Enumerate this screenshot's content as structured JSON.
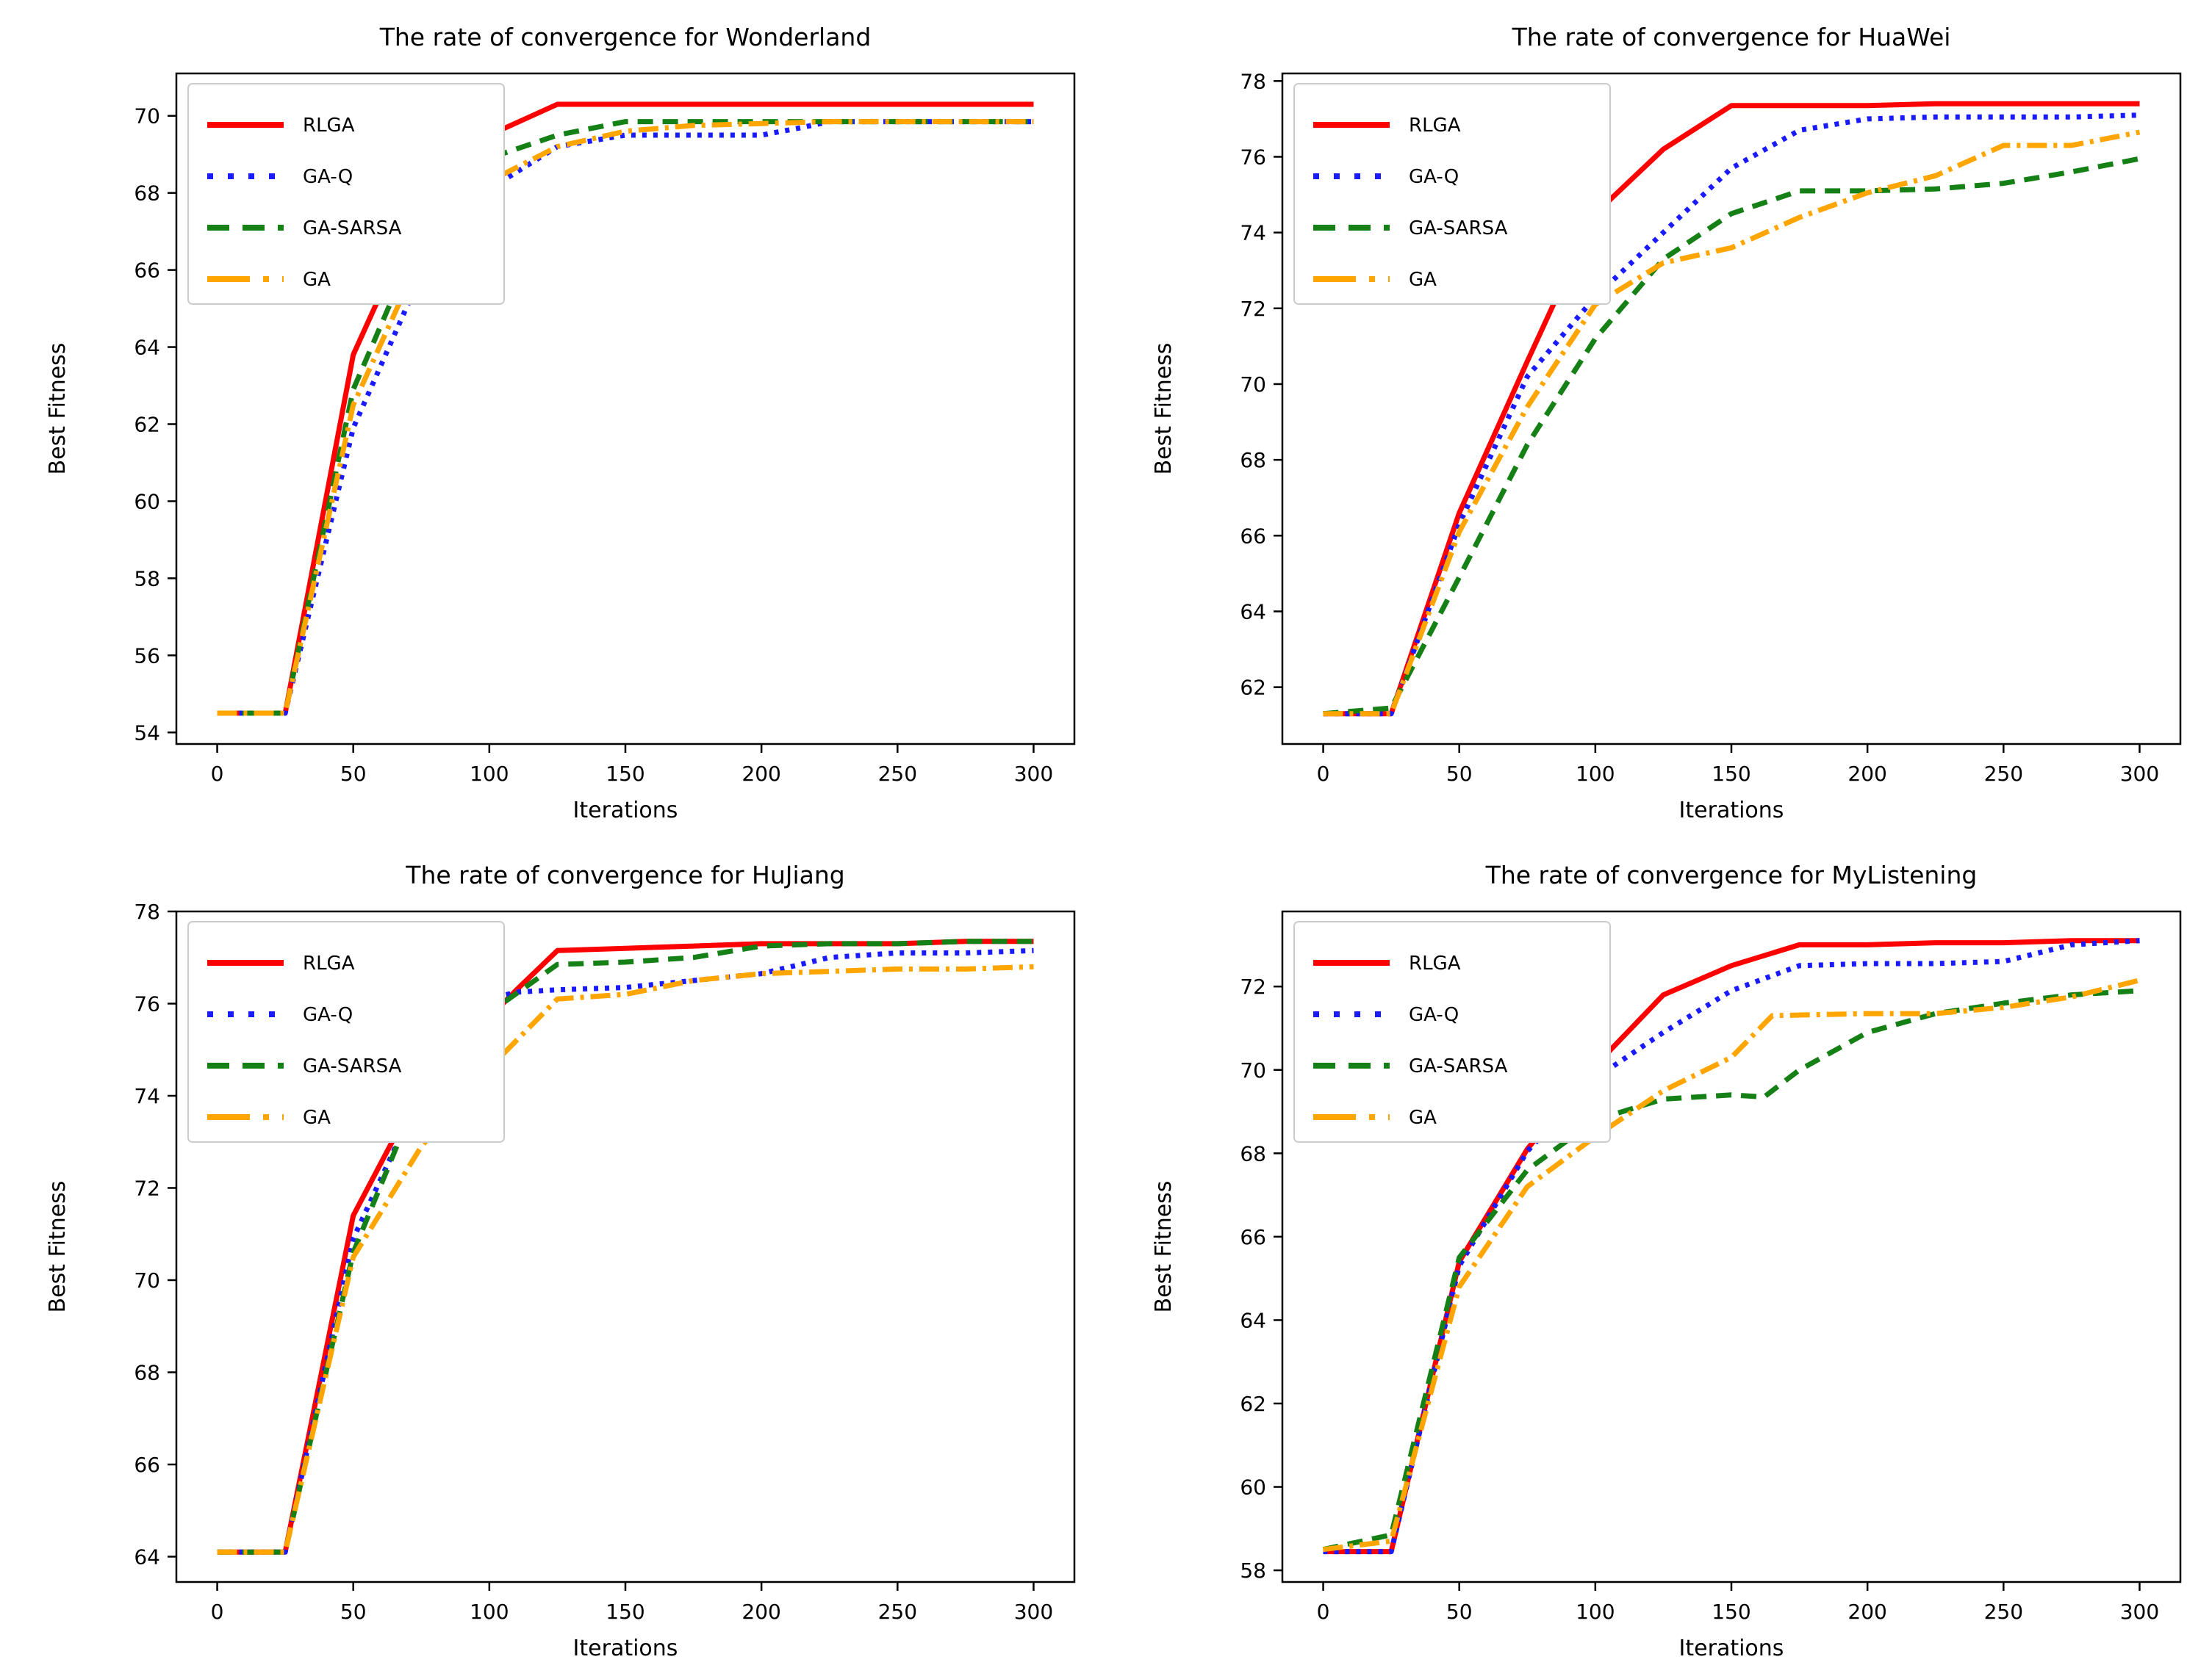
{
  "figure": {
    "background": "#ffffff",
    "text_color": "#000000",
    "axis_color": "#000000",
    "legend_border_color": "#cccccc"
  },
  "chart_data": [
    {
      "type": "line",
      "title": "The rate of convergence for Wonderland",
      "xlabel": "Iterations",
      "ylabel": "Best Fitness",
      "xlim": [
        -15,
        315
      ],
      "ylim": [
        53.7,
        71.1
      ],
      "xticks": [
        0,
        50,
        100,
        150,
        200,
        250,
        300
      ],
      "yticks": [
        54,
        56,
        58,
        60,
        62,
        64,
        66,
        68,
        70
      ],
      "grid": false,
      "legend_position": "upper-left",
      "series": [
        {
          "name": "RLGA",
          "color": "#ff0000",
          "style": "solid",
          "points": [
            [
              0,
              54.5
            ],
            [
              25,
              54.5
            ],
            [
              50,
              63.8
            ],
            [
              75,
              67.7
            ],
            [
              100,
              69.5
            ],
            [
              125,
              70.3
            ],
            [
              150,
              70.3
            ],
            [
              175,
              70.3
            ],
            [
              200,
              70.3
            ],
            [
              225,
              70.3
            ],
            [
              250,
              70.3
            ],
            [
              275,
              70.3
            ],
            [
              300,
              70.3
            ]
          ]
        },
        {
          "name": "GA-Q",
          "color": "#1a1aff",
          "style": "dotted",
          "points": [
            [
              0,
              54.5
            ],
            [
              25,
              54.5
            ],
            [
              50,
              61.9
            ],
            [
              75,
              65.9
            ],
            [
              100,
              68.1
            ],
            [
              125,
              69.2
            ],
            [
              150,
              69.5
            ],
            [
              175,
              69.5
            ],
            [
              200,
              69.5
            ],
            [
              215,
              69.7
            ],
            [
              225,
              69.85
            ],
            [
              250,
              69.85
            ],
            [
              275,
              69.85
            ],
            [
              300,
              69.85
            ]
          ]
        },
        {
          "name": "GA-SARSA",
          "color": "#158015",
          "style": "dashed",
          "points": [
            [
              0,
              54.5
            ],
            [
              25,
              54.5
            ],
            [
              50,
              62.9
            ],
            [
              75,
              67.0
            ],
            [
              100,
              68.9
            ],
            [
              125,
              69.5
            ],
            [
              150,
              69.85
            ],
            [
              175,
              69.85
            ],
            [
              200,
              69.85
            ],
            [
              225,
              69.85
            ],
            [
              250,
              69.85
            ],
            [
              275,
              69.85
            ],
            [
              300,
              69.85
            ]
          ]
        },
        {
          "name": "GA",
          "color": "#ffa500",
          "style": "dashdot",
          "points": [
            [
              0,
              54.5
            ],
            [
              25,
              54.5
            ],
            [
              50,
              62.5
            ],
            [
              75,
              66.4
            ],
            [
              100,
              68.3
            ],
            [
              125,
              69.2
            ],
            [
              150,
              69.6
            ],
            [
              175,
              69.75
            ],
            [
              200,
              69.8
            ],
            [
              225,
              69.85
            ],
            [
              250,
              69.85
            ],
            [
              275,
              69.85
            ],
            [
              300,
              69.85
            ]
          ]
        }
      ]
    },
    {
      "type": "line",
      "title": "The rate of convergence for HuaWei",
      "xlabel": "Iterations",
      "ylabel": "Best Fitness",
      "xlim": [
        -15,
        315
      ],
      "ylim": [
        60.5,
        78.2
      ],
      "xticks": [
        0,
        50,
        100,
        150,
        200,
        250,
        300
      ],
      "yticks": [
        62,
        64,
        66,
        68,
        70,
        72,
        74,
        76,
        78
      ],
      "grid": false,
      "legend_position": "upper-left",
      "series": [
        {
          "name": "RLGA",
          "color": "#ff0000",
          "style": "solid",
          "points": [
            [
              0,
              61.3
            ],
            [
              25,
              61.3
            ],
            [
              50,
              66.6
            ],
            [
              75,
              70.6
            ],
            [
              100,
              74.5
            ],
            [
              125,
              76.2
            ],
            [
              150,
              77.35
            ],
            [
              175,
              77.35
            ],
            [
              200,
              77.35
            ],
            [
              225,
              77.4
            ],
            [
              250,
              77.4
            ],
            [
              275,
              77.4
            ],
            [
              300,
              77.4
            ]
          ]
        },
        {
          "name": "GA-Q",
          "color": "#1a1aff",
          "style": "dotted",
          "points": [
            [
              0,
              61.3
            ],
            [
              25,
              61.3
            ],
            [
              50,
              66.3
            ],
            [
              75,
              70.2
            ],
            [
              100,
              72.3
            ],
            [
              125,
              74.0
            ],
            [
              150,
              75.7
            ],
            [
              175,
              76.7
            ],
            [
              200,
              77.0
            ],
            [
              225,
              77.05
            ],
            [
              250,
              77.05
            ],
            [
              275,
              77.05
            ],
            [
              300,
              77.1
            ]
          ]
        },
        {
          "name": "GA-SARSA",
          "color": "#158015",
          "style": "dashed",
          "points": [
            [
              0,
              61.3
            ],
            [
              25,
              61.45
            ],
            [
              50,
              64.9
            ],
            [
              75,
              68.4
            ],
            [
              100,
              71.2
            ],
            [
              125,
              73.3
            ],
            [
              150,
              74.5
            ],
            [
              175,
              75.1
            ],
            [
              200,
              75.1
            ],
            [
              225,
              75.15
            ],
            [
              250,
              75.3
            ],
            [
              275,
              75.6
            ],
            [
              300,
              75.95
            ]
          ]
        },
        {
          "name": "GA",
          "color": "#ffa500",
          "style": "dashdot",
          "points": [
            [
              0,
              61.3
            ],
            [
              25,
              61.3
            ],
            [
              50,
              66.1
            ],
            [
              75,
              69.4
            ],
            [
              100,
              72.1
            ],
            [
              125,
              73.2
            ],
            [
              150,
              73.6
            ],
            [
              175,
              74.4
            ],
            [
              200,
              75.05
            ],
            [
              225,
              75.5
            ],
            [
              250,
              76.3
            ],
            [
              275,
              76.3
            ],
            [
              300,
              76.65
            ]
          ]
        }
      ]
    },
    {
      "type": "line",
      "title": "The rate of convergence for HuJiang",
      "xlabel": "Iterations",
      "ylabel": "Best Fitness",
      "xlim": [
        -15,
        315
      ],
      "ylim": [
        63.45,
        78.0
      ],
      "xticks": [
        0,
        50,
        100,
        150,
        200,
        250,
        300
      ],
      "yticks": [
        64,
        66,
        68,
        70,
        72,
        74,
        76,
        78
      ],
      "grid": false,
      "legend_position": "upper-left",
      "series": [
        {
          "name": "RLGA",
          "color": "#ff0000",
          "style": "solid",
          "points": [
            [
              0,
              64.1
            ],
            [
              25,
              64.1
            ],
            [
              50,
              71.4
            ],
            [
              75,
              74.2
            ],
            [
              100,
              75.7
            ],
            [
              110,
              76.3
            ],
            [
              125,
              77.15
            ],
            [
              150,
              77.2
            ],
            [
              175,
              77.25
            ],
            [
              200,
              77.3
            ],
            [
              225,
              77.3
            ],
            [
              250,
              77.3
            ],
            [
              275,
              77.35
            ],
            [
              300,
              77.35
            ]
          ]
        },
        {
          "name": "GA-Q",
          "color": "#1a1aff",
          "style": "dotted",
          "points": [
            [
              0,
              64.1
            ],
            [
              25,
              64.1
            ],
            [
              50,
              70.9
            ],
            [
              75,
              74.1
            ],
            [
              90,
              75.4
            ],
            [
              100,
              76.1
            ],
            [
              110,
              76.25
            ],
            [
              125,
              76.3
            ],
            [
              150,
              76.35
            ],
            [
              175,
              76.5
            ],
            [
              200,
              76.65
            ],
            [
              225,
              77.0
            ],
            [
              250,
              77.1
            ],
            [
              275,
              77.1
            ],
            [
              300,
              77.15
            ]
          ]
        },
        {
          "name": "GA-SARSA",
          "color": "#158015",
          "style": "dashed",
          "points": [
            [
              0,
              64.1
            ],
            [
              25,
              64.1
            ],
            [
              50,
              70.6
            ],
            [
              75,
              74.2
            ],
            [
              100,
              75.8
            ],
            [
              125,
              76.85
            ],
            [
              150,
              76.9
            ],
            [
              175,
              77.0
            ],
            [
              200,
              77.25
            ],
            [
              225,
              77.3
            ],
            [
              250,
              77.3
            ],
            [
              275,
              77.35
            ],
            [
              300,
              77.35
            ]
          ]
        },
        {
          "name": "GA",
          "color": "#ffa500",
          "style": "dashdot",
          "points": [
            [
              0,
              64.1
            ],
            [
              25,
              64.1
            ],
            [
              50,
              70.5
            ],
            [
              75,
              72.9
            ],
            [
              100,
              74.6
            ],
            [
              125,
              76.1
            ],
            [
              150,
              76.2
            ],
            [
              175,
              76.5
            ],
            [
              200,
              76.65
            ],
            [
              225,
              76.7
            ],
            [
              250,
              76.75
            ],
            [
              275,
              76.75
            ],
            [
              300,
              76.8
            ]
          ]
        }
      ]
    },
    {
      "type": "line",
      "title": "The rate of convergence for MyListening",
      "xlabel": "Iterations",
      "ylabel": "Best Fitness",
      "xlim": [
        -15,
        315
      ],
      "ylim": [
        57.72,
        73.8
      ],
      "xticks": [
        0,
        50,
        100,
        150,
        200,
        250,
        300
      ],
      "yticks": [
        58,
        60,
        62,
        64,
        66,
        68,
        70,
        72
      ],
      "grid": false,
      "legend_position": "upper-left",
      "series": [
        {
          "name": "RLGA",
          "color": "#ff0000",
          "style": "solid",
          "points": [
            [
              0,
              58.45
            ],
            [
              25,
              58.45
            ],
            [
              50,
              65.4
            ],
            [
              75,
              68.1
            ],
            [
              100,
              70.1
            ],
            [
              125,
              71.8
            ],
            [
              150,
              72.5
            ],
            [
              175,
              73.0
            ],
            [
              200,
              73.0
            ],
            [
              225,
              73.05
            ],
            [
              250,
              73.05
            ],
            [
              275,
              73.1
            ],
            [
              300,
              73.1
            ]
          ]
        },
        {
          "name": "GA-Q",
          "color": "#1a1aff",
          "style": "dotted",
          "points": [
            [
              0,
              58.45
            ],
            [
              25,
              58.45
            ],
            [
              50,
              65.3
            ],
            [
              75,
              68.05
            ],
            [
              100,
              69.8
            ],
            [
              125,
              70.9
            ],
            [
              150,
              71.9
            ],
            [
              175,
              72.5
            ],
            [
              200,
              72.55
            ],
            [
              225,
              72.55
            ],
            [
              250,
              72.6
            ],
            [
              275,
              73.0
            ],
            [
              300,
              73.1
            ]
          ]
        },
        {
          "name": "GA-SARSA",
          "color": "#158015",
          "style": "dashed",
          "points": [
            [
              0,
              58.5
            ],
            [
              25,
              58.85
            ],
            [
              50,
              65.5
            ],
            [
              75,
              67.6
            ],
            [
              100,
              68.8
            ],
            [
              125,
              69.3
            ],
            [
              150,
              69.4
            ],
            [
              162,
              69.35
            ],
            [
              175,
              70.0
            ],
            [
              200,
              70.9
            ],
            [
              225,
              71.35
            ],
            [
              250,
              71.6
            ],
            [
              275,
              71.8
            ],
            [
              300,
              71.9
            ]
          ]
        },
        {
          "name": "GA",
          "color": "#ffa500",
          "style": "dashdot",
          "points": [
            [
              0,
              58.5
            ],
            [
              25,
              58.7
            ],
            [
              50,
              64.8
            ],
            [
              75,
              67.2
            ],
            [
              100,
              68.4
            ],
            [
              125,
              69.5
            ],
            [
              150,
              70.3
            ],
            [
              165,
              71.3
            ],
            [
              200,
              71.35
            ],
            [
              225,
              71.35
            ],
            [
              250,
              71.5
            ],
            [
              275,
              71.75
            ],
            [
              300,
              72.15
            ]
          ]
        }
      ]
    }
  ]
}
